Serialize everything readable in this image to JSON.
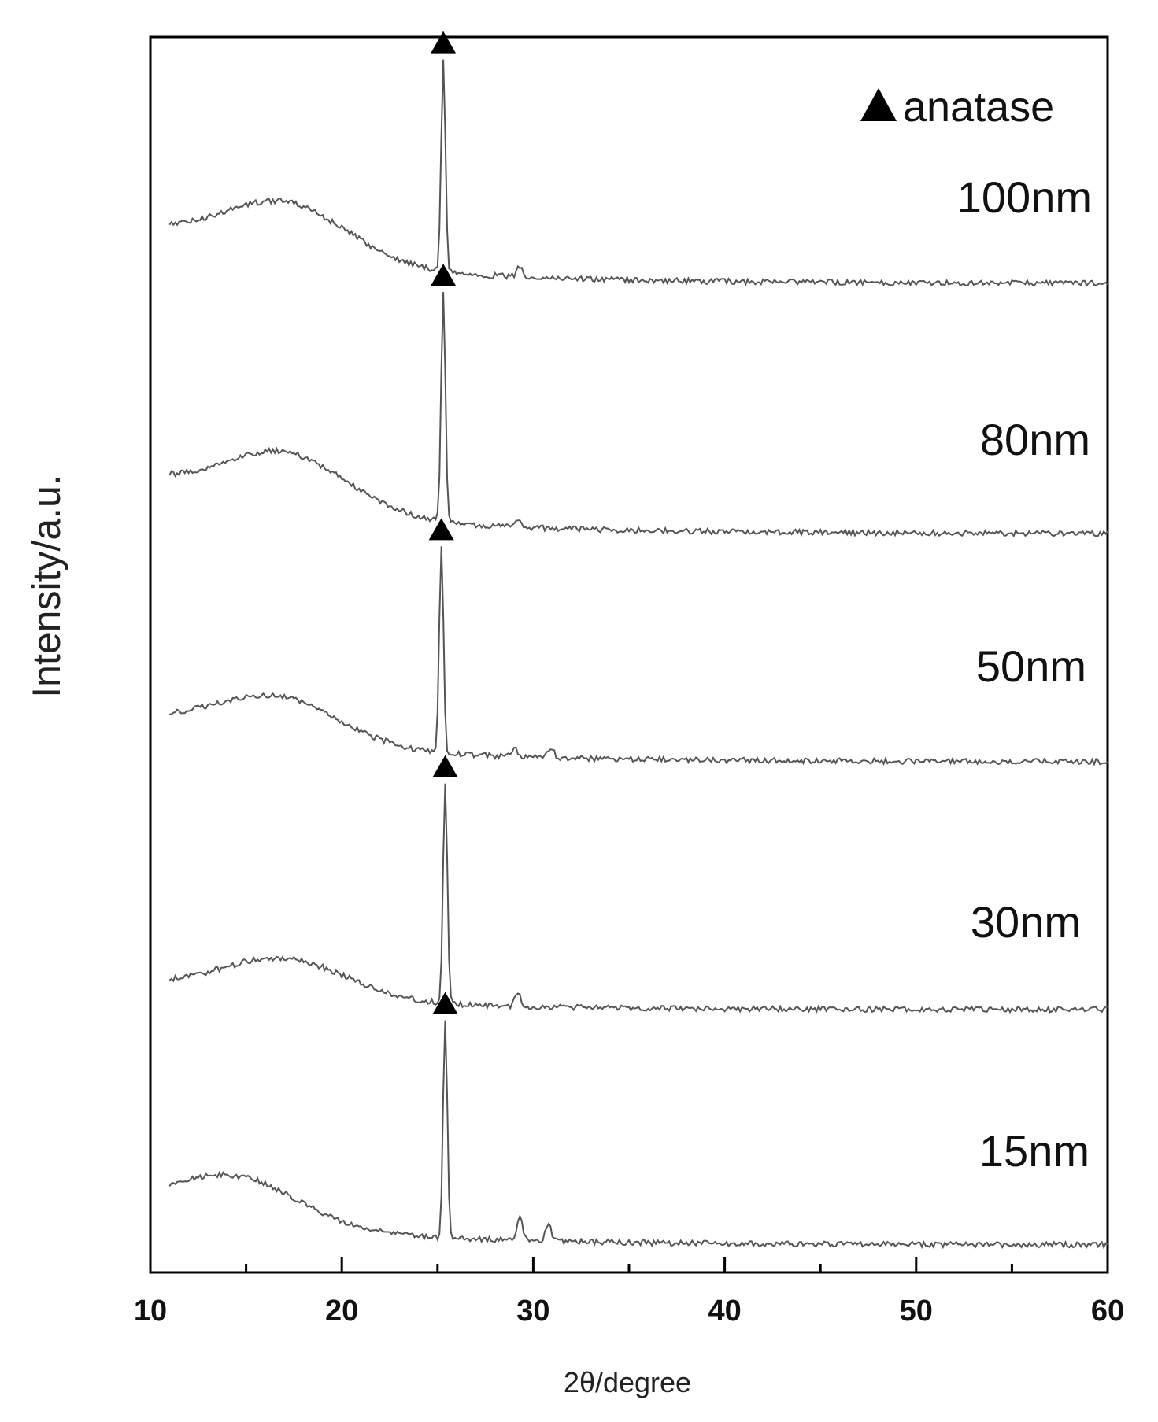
{
  "chart_data": {
    "type": "line",
    "title": "",
    "xlabel": "2θ/degree",
    "ylabel": "Intensity/a.u.",
    "xlim": [
      10,
      60
    ],
    "x_ticks_major": [
      10,
      20,
      30,
      40,
      50,
      60
    ],
    "x_ticks_minor": [
      15,
      25,
      35,
      45,
      55
    ],
    "y_ticks": [],
    "grid": false,
    "legend": {
      "label": "anatase",
      "marker": "filled-triangle",
      "placement": "top-right"
    },
    "colors": {
      "line": "#555555",
      "frame": "#000000",
      "marker": "#000000"
    },
    "series": [
      {
        "name": "100nm",
        "baseline_range": [
          11,
          60
        ],
        "amorphous_hump": {
          "center": 17,
          "relative_height": 0.22
        },
        "peaks": [
          {
            "x": 25.3,
            "relative_height": 1.0,
            "marked_anatase": true
          },
          {
            "x": 29.3,
            "relative_height": 0.05,
            "marked_anatase": false
          }
        ]
      },
      {
        "name": "80nm",
        "baseline_range": [
          11,
          60
        ],
        "amorphous_hump": {
          "center": 17,
          "relative_height": 0.25
        },
        "peaks": [
          {
            "x": 25.3,
            "relative_height": 1.0,
            "marked_anatase": true
          },
          {
            "x": 29.2,
            "relative_height": 0.04,
            "marked_anatase": false
          }
        ]
      },
      {
        "name": "50nm",
        "baseline_range": [
          11,
          60
        ],
        "amorphous_hump": {
          "center": 16.5,
          "relative_height": 0.2
        },
        "peaks": [
          {
            "x": 25.2,
            "relative_height": 1.0,
            "marked_anatase": true
          },
          {
            "x": 29.0,
            "relative_height": 0.04,
            "marked_anatase": false
          },
          {
            "x": 30.9,
            "relative_height": 0.05,
            "marked_anatase": false
          }
        ]
      },
      {
        "name": "30nm",
        "baseline_range": [
          11,
          60
        ],
        "amorphous_hump": {
          "center": 17,
          "relative_height": 0.18
        },
        "peaks": [
          {
            "x": 25.4,
            "relative_height": 1.0,
            "marked_anatase": true
          },
          {
            "x": 29.2,
            "relative_height": 0.06,
            "marked_anatase": false
          }
        ]
      },
      {
        "name": "15nm",
        "baseline_range": [
          11,
          60
        ],
        "amorphous_hump": {
          "center": 14.5,
          "relative_height": 0.2
        },
        "peaks": [
          {
            "x": 25.4,
            "relative_height": 1.0,
            "marked_anatase": true
          },
          {
            "x": 29.3,
            "relative_height": 0.1,
            "marked_anatase": false
          },
          {
            "x": 30.8,
            "relative_height": 0.07,
            "marked_anatase": false
          }
        ]
      }
    ]
  }
}
